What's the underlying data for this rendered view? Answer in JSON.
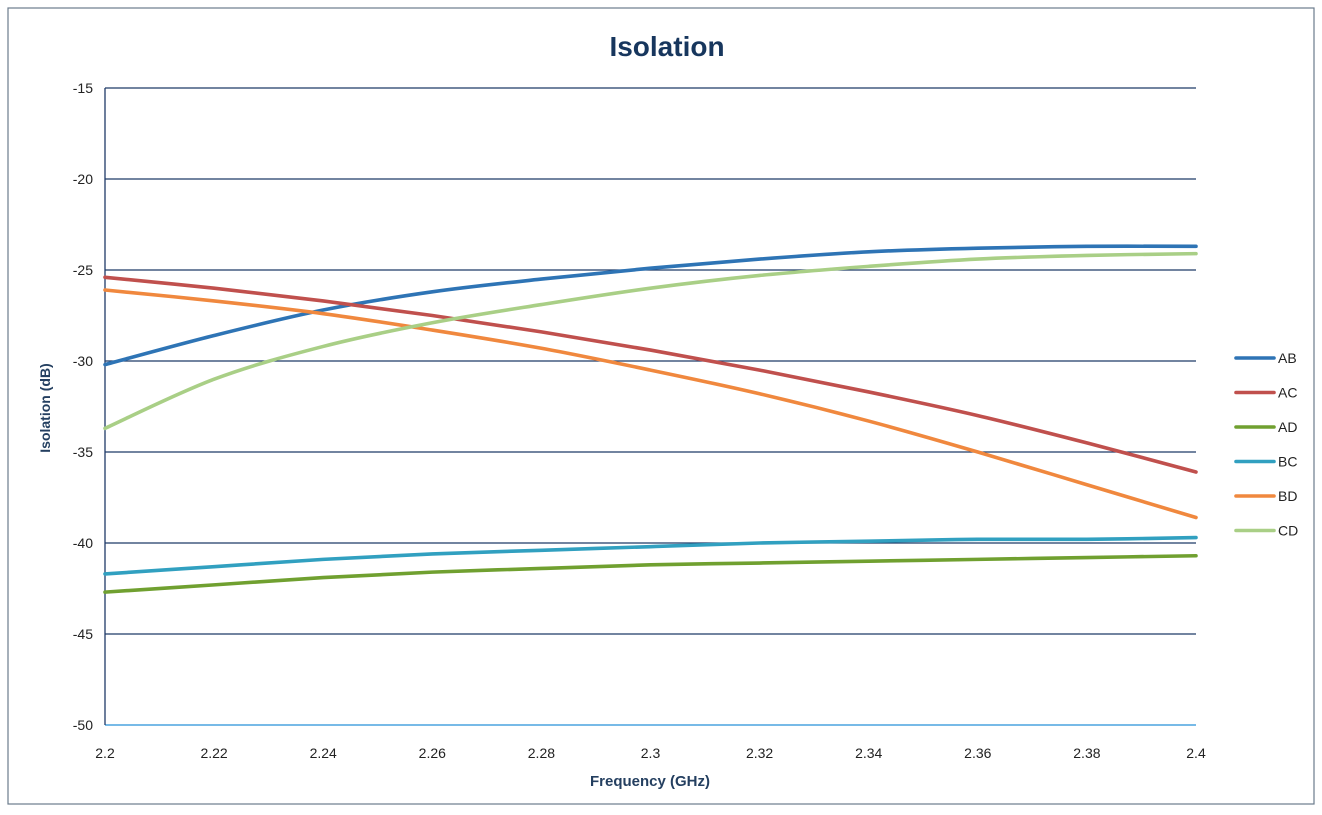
{
  "chart_data": {
    "type": "line",
    "title": "Isolation",
    "xlabel": "Frequency (GHz)",
    "ylabel": "Isolation (dB)",
    "xlim": [
      2.2,
      2.4
    ],
    "ylim": [
      -50,
      -15
    ],
    "x_ticks": [
      "2.2",
      "2.22",
      "2.24",
      "2.26",
      "2.28",
      "2.3",
      "2.32",
      "2.34",
      "2.36",
      "2.38",
      "2.4"
    ],
    "y_ticks": [
      "-15",
      "-20",
      "-25",
      "-30",
      "-35",
      "-40",
      "-45",
      "-50"
    ],
    "grid": "horizontal",
    "legend_position": "right",
    "x": [
      2.2,
      2.22,
      2.24,
      2.26,
      2.28,
      2.3,
      2.32,
      2.34,
      2.36,
      2.38,
      2.4
    ],
    "series": [
      {
        "name": "AB",
        "color": "#2e74b5",
        "values": [
          -30.2,
          -28.6,
          -27.2,
          -26.2,
          -25.5,
          -24.9,
          -24.4,
          -24.0,
          -23.8,
          -23.7,
          -23.7
        ]
      },
      {
        "name": "AC",
        "color": "#c0504d",
        "values": [
          -25.4,
          -26.0,
          -26.7,
          -27.5,
          -28.4,
          -29.4,
          -30.5,
          -31.7,
          -33.0,
          -34.5,
          -36.1
        ]
      },
      {
        "name": "AD",
        "color": "#70a030",
        "values": [
          -42.7,
          -42.3,
          -41.9,
          -41.6,
          -41.4,
          -41.2,
          -41.1,
          -41.0,
          -40.9,
          -40.8,
          -40.7
        ]
      },
      {
        "name": "BC",
        "color": "#31a0c0",
        "values": [
          -41.7,
          -41.3,
          -40.9,
          -40.6,
          -40.4,
          -40.2,
          -40.0,
          -39.9,
          -39.8,
          -39.8,
          -39.7
        ]
      },
      {
        "name": "BD",
        "color": "#f0883e",
        "values": [
          -26.1,
          -26.7,
          -27.4,
          -28.3,
          -29.3,
          -30.5,
          -31.8,
          -33.3,
          -35.0,
          -36.8,
          -38.6
        ]
      },
      {
        "name": "CD",
        "color": "#a9cf86",
        "values": [
          -33.7,
          -31.0,
          -29.2,
          -27.9,
          -26.9,
          -26.0,
          -25.3,
          -24.8,
          -24.4,
          -24.2,
          -24.1
        ]
      }
    ]
  }
}
